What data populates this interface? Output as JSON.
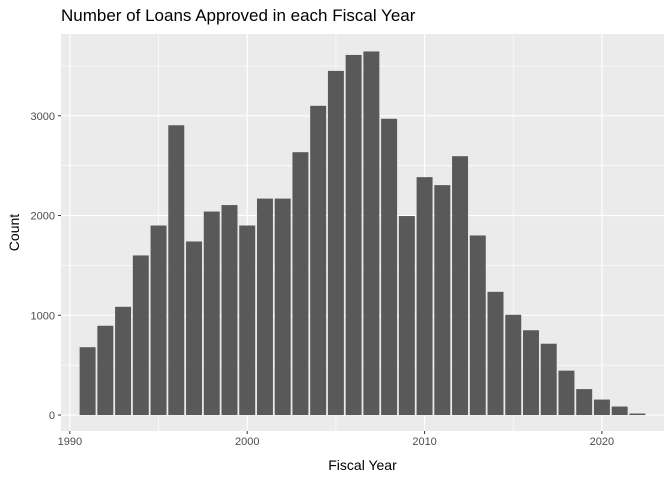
{
  "chart_data": {
    "type": "bar",
    "title": "Number of Loans Approved in each Fiscal Year",
    "xlabel": "Fiscal Year",
    "ylabel": "Count",
    "xlim": [
      1989.5,
      2023.5
    ],
    "ylim": [
      -160,
      3820
    ],
    "x_ticks": [
      1990,
      2000,
      2010,
      2020
    ],
    "y_ticks": [
      0,
      1000,
      2000,
      3000
    ],
    "grid": true,
    "legend": "none",
    "colors": {
      "bar": "#595959",
      "panel": "#ebebeb",
      "grid": "#ffffff"
    },
    "series": [
      {
        "x": [
          1991,
          1992,
          1993,
          1994,
          1995,
          1996,
          1997,
          1998,
          1999,
          2000,
          2001,
          2002,
          2003,
          2004,
          2005,
          2006,
          2007,
          2008,
          2009,
          2010,
          2011,
          2012,
          2013,
          2014,
          2015,
          2016,
          2017,
          2018,
          2019,
          2020,
          2021,
          2022
        ],
        "values": [
          680,
          895,
          1085,
          1600,
          1900,
          2905,
          1740,
          2040,
          2105,
          1900,
          2170,
          2170,
          2635,
          3100,
          3450,
          3610,
          3645,
          2970,
          1995,
          2385,
          2305,
          2595,
          1800,
          1235,
          1005,
          850,
          715,
          445,
          260,
          155,
          85,
          15
        ]
      }
    ]
  }
}
